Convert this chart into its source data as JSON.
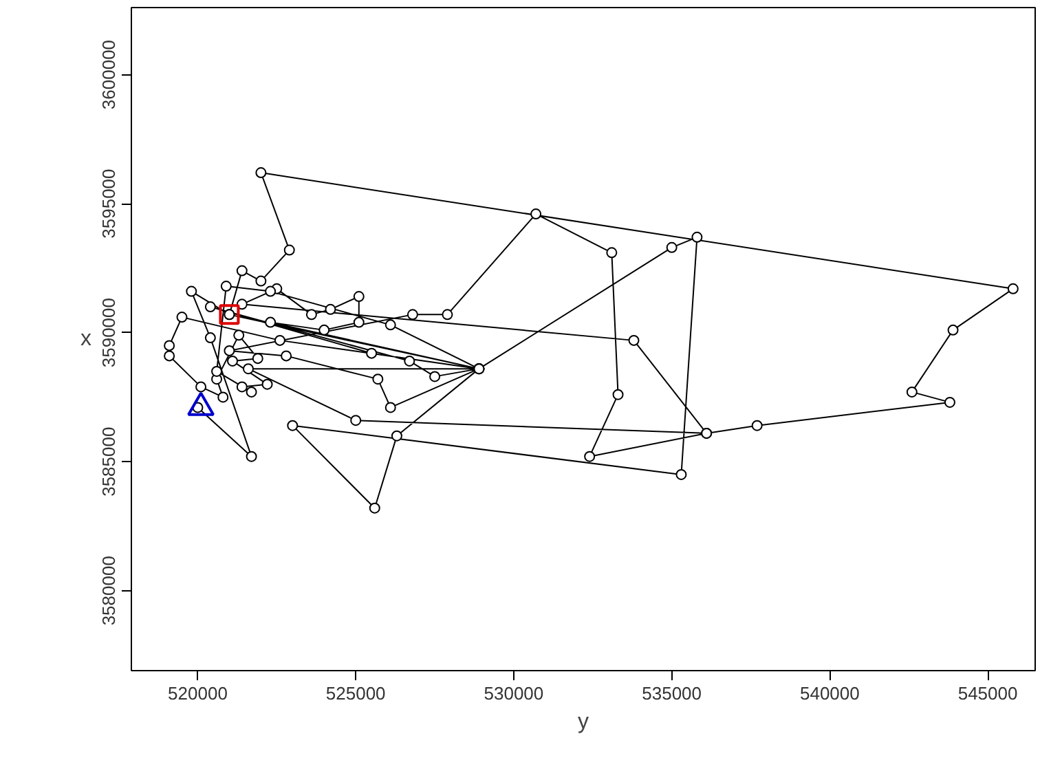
{
  "chart_data": {
    "type": "line",
    "xlabel": "y",
    "ylabel": "x",
    "xlim": [
      517900,
      546500
    ],
    "ylim": [
      3576900,
      3602600
    ],
    "xticks": [
      520000,
      525000,
      530000,
      535000,
      540000,
      545000
    ],
    "yticks": [
      3580000,
      3585000,
      3590000,
      3595000,
      3600000
    ],
    "grid": false,
    "line_style": "solid",
    "series": [
      {
        "color": "#000000",
        "marker": "circle",
        "x": [
          520000,
          521700,
          520400,
          519800,
          521000,
          521400,
          522000,
          522900,
          522000,
          545800,
          543900,
          542600,
          543800,
          537700,
          536100,
          533800,
          521400,
          522500,
          523600,
          524200,
          525100,
          525100,
          524000,
          522300,
          528900,
          535000,
          535800,
          535300,
          523000,
          525600,
          526300,
          528900,
          526100,
          525700,
          522800,
          521000,
          526800,
          527900,
          530700,
          533100,
          533300,
          532400,
          536100,
          525000,
          521600,
          528900,
          525500,
          520400,
          526700,
          527500,
          528900,
          522600,
          519500,
          519100,
          519100,
          520100,
          520800,
          520600,
          521300,
          521900,
          521100,
          522200,
          521400,
          521700,
          520600,
          520900,
          522300,
          526100,
          528900,
          521000
        ],
        "values": [
          3587100,
          3585200,
          3589800,
          3591600,
          3590700,
          3592400,
          3592000,
          3593200,
          3596200,
          3591700,
          3590100,
          3587700,
          3587300,
          3586400,
          3586100,
          3589700,
          3591100,
          3591700,
          3590700,
          3590900,
          3591400,
          3590400,
          3590100,
          3590400,
          3588600,
          3593300,
          3593700,
          3584500,
          3586400,
          3583200,
          3586000,
          3588600,
          3587100,
          3588200,
          3589100,
          3589300,
          3590700,
          3590700,
          3594600,
          3593100,
          3587600,
          3585200,
          3586100,
          3586600,
          3588600,
          3588600,
          3589200,
          3591000,
          3588900,
          3588300,
          3588600,
          3589700,
          3590600,
          3589500,
          3589100,
          3587900,
          3587500,
          3588200,
          3589900,
          3589000,
          3588900,
          3588000,
          3587900,
          3587700,
          3588500,
          3591800,
          3591600,
          3590300,
          3588600,
          3590700
        ]
      },
      {
        "type": "scatter",
        "color": "#0000cc",
        "marker": "triangle",
        "x": [
          520100
        ],
        "values": [
          3587100
        ]
      },
      {
        "type": "scatter",
        "color": "#dd0000",
        "marker": "square",
        "x": [
          521000
        ],
        "values": [
          3590700
        ]
      }
    ]
  }
}
